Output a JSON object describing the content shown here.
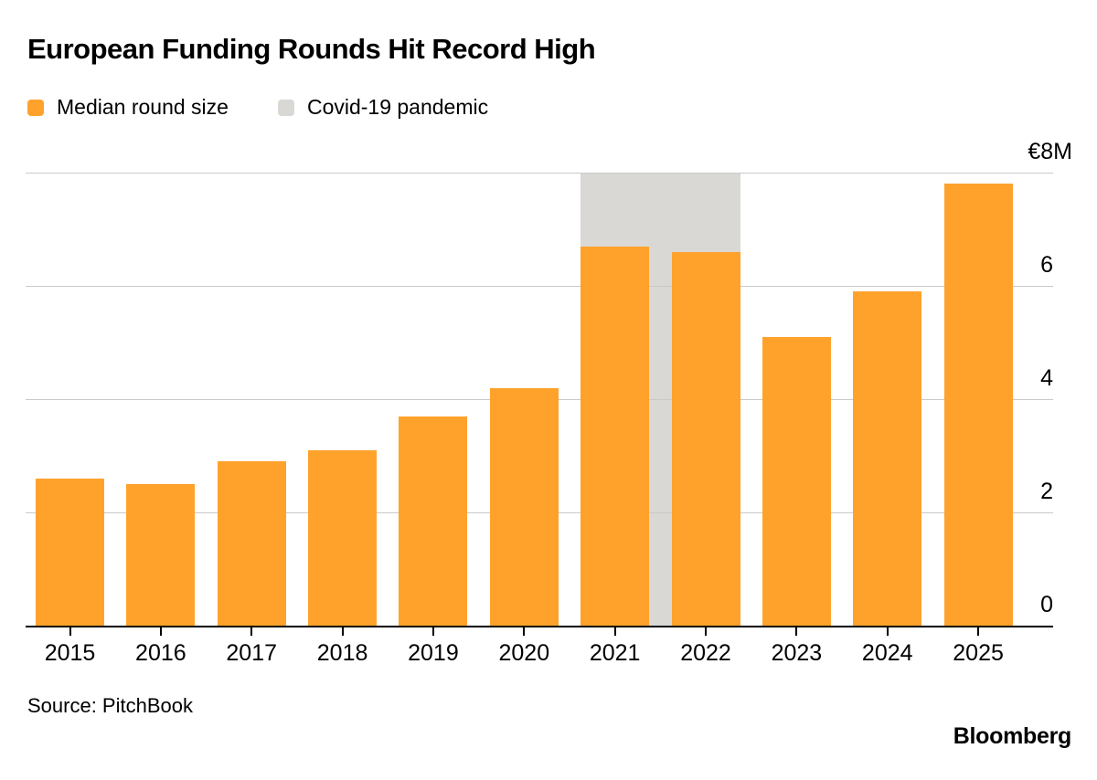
{
  "title": "European Funding Rounds Hit Record High",
  "legend": {
    "items": [
      {
        "id": "median-round-size",
        "label": "Median round size",
        "color": "#FFA22C"
      },
      {
        "id": "covid-19-pandemic",
        "label": "Covid-19 pandemic",
        "color": "#D9D8D5"
      }
    ]
  },
  "chart_data": {
    "type": "bar",
    "title": "European Funding Rounds Hit Record High",
    "categories": [
      "2015",
      "2016",
      "2017",
      "2018",
      "2019",
      "2020",
      "2021",
      "2022",
      "2023",
      "2024",
      "2025"
    ],
    "series": [
      {
        "name": "Median round size",
        "values": [
          2.6,
          2.5,
          2.9,
          3.1,
          3.7,
          4.2,
          6.7,
          6.6,
          5.1,
          5.9,
          7.8
        ]
      }
    ],
    "unit": "€M",
    "ylim": [
      0,
      8
    ],
    "y_ticks": [
      0,
      2,
      4,
      6
    ],
    "y_top_label": "€8M",
    "grid": "horizontal",
    "legend_position": "top-left",
    "annotation_band": {
      "label": "Covid-19 pandemic",
      "from_category": "2021",
      "to_category": "2022",
      "color": "#D9D8D5"
    }
  },
  "footer": {
    "source": "Source: PitchBook",
    "branding": "Bloomberg"
  },
  "colors": {
    "bar": "#FFA22C",
    "band": "#D9D8D5",
    "gridline": "#C9C9C9",
    "axis": "#000000",
    "text": "#000000",
    "background": "#FFFFFF"
  }
}
